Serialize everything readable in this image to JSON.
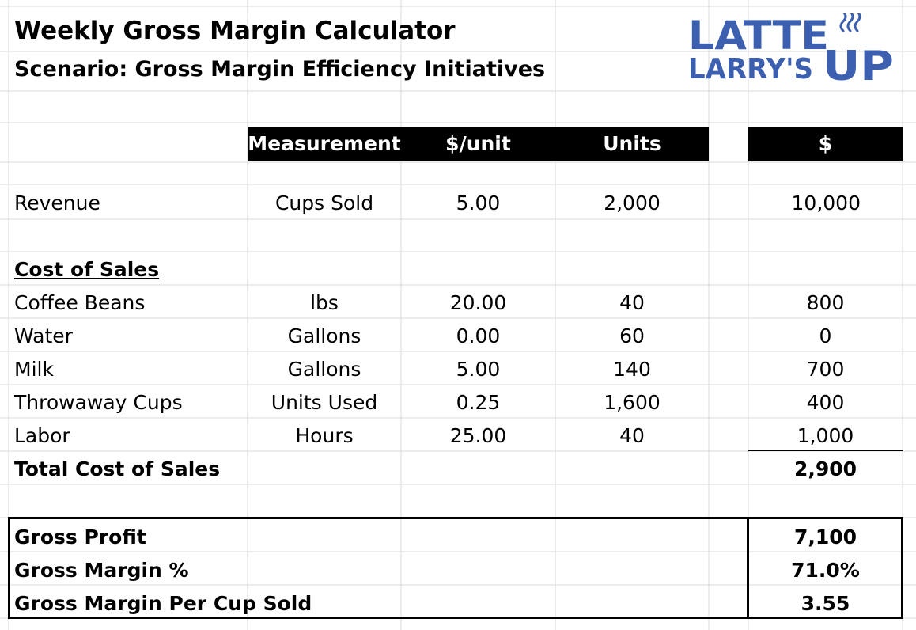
{
  "title": "Weekly Gross Margin Calculator",
  "subtitle": "Scenario: Gross Margin Efficiency Initiatives",
  "logo": {
    "line1": "LATTE",
    "line2": "LARRY'S",
    "line3": "UP",
    "color": "#3d5fb0"
  },
  "headers": {
    "measurement": "Measurement",
    "per_unit": "$/unit",
    "units": "Units",
    "amount": "$"
  },
  "revenue": {
    "label": "Revenue",
    "measurement": "Cups Sold",
    "per_unit": "5.00",
    "units": "2,000",
    "amount": "10,000"
  },
  "cost_of_sales_label": "Cost of Sales",
  "costs": [
    {
      "label": "Coffee Beans",
      "measurement": "lbs",
      "per_unit": "20.00",
      "units": "40",
      "amount": "800"
    },
    {
      "label": "Water",
      "measurement": "Gallons",
      "per_unit": "0.00",
      "units": "60",
      "amount": "0"
    },
    {
      "label": "Milk",
      "measurement": "Gallons",
      "per_unit": "5.00",
      "units": "140",
      "amount": "700"
    },
    {
      "label": "Throwaway Cups",
      "measurement": "Units Used",
      "per_unit": "0.25",
      "units": "1,600",
      "amount": "400"
    },
    {
      "label": "Labor",
      "measurement": "Hours",
      "per_unit": "25.00",
      "units": "40",
      "amount": "1,000"
    }
  ],
  "total_cost": {
    "label": "Total Cost of Sales",
    "amount": "2,900"
  },
  "summary": [
    {
      "label": "Gross Profit",
      "amount": "7,100"
    },
    {
      "label": "Gross Margin %",
      "amount": "71.0%"
    },
    {
      "label": "Gross Margin Per Cup Sold",
      "amount": "3.55"
    }
  ]
}
